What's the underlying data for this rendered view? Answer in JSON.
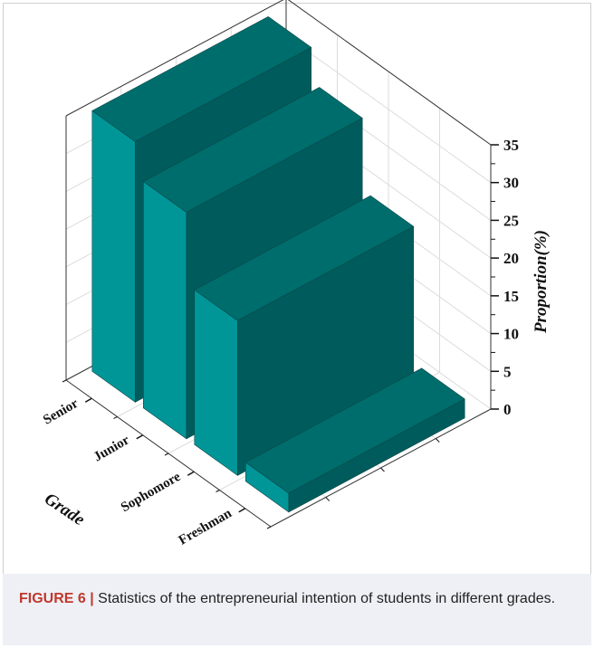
{
  "chart_data": {
    "type": "bar",
    "variant": "3d",
    "categories": [
      "Senior",
      "Junior",
      "Sophomore",
      "Freshman"
    ],
    "values": [
      34.5,
      30,
      20.5,
      2.5
    ],
    "xlabel": "Grade",
    "ylabel": "Proportion(%)",
    "ylim": [
      0,
      35
    ],
    "yticks": [
      0,
      5,
      10,
      15,
      20,
      25,
      30,
      35
    ],
    "grid": true,
    "bar_colors": {
      "front": "#009698",
      "side": "#005c5c",
      "top": "#006d6d"
    }
  },
  "caption": {
    "label": "FIGURE 6 |",
    "text": " Statistics of the entrepreneurial intention of students in different grades."
  }
}
